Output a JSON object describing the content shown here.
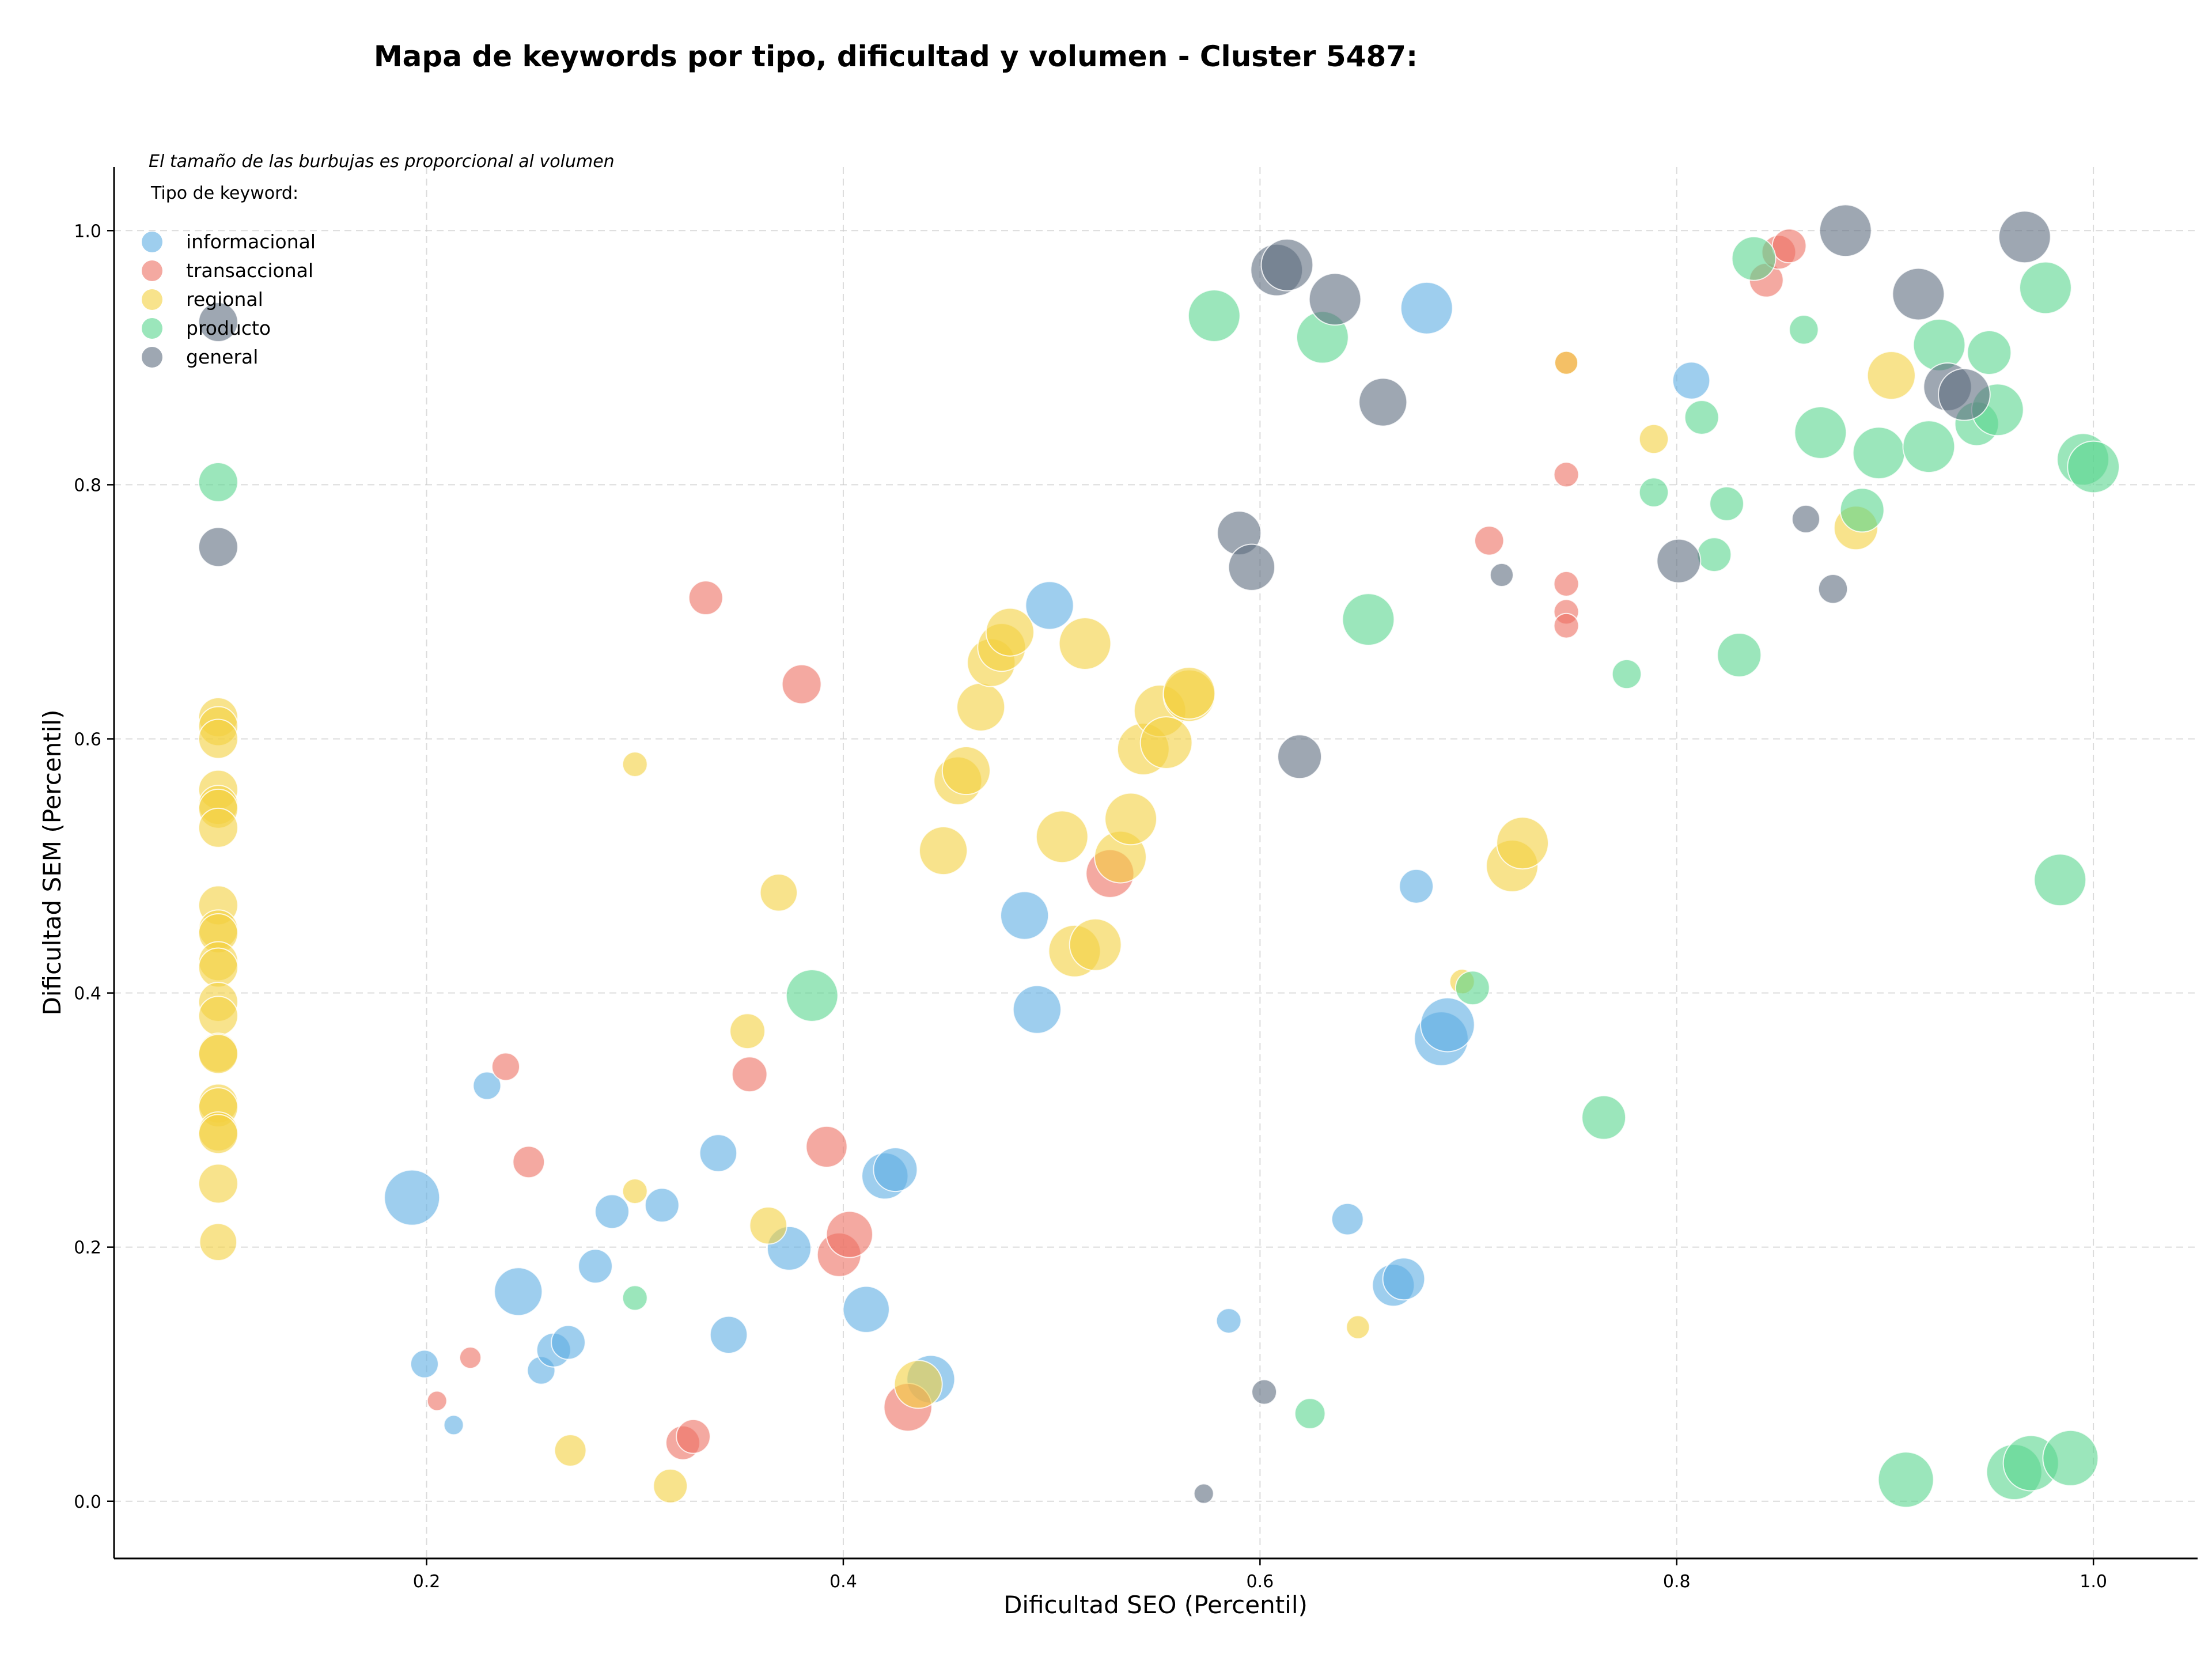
{
  "chart_data": {
    "type": "scatter",
    "title": "Mapa de keywords por tipo, dificultad y volumen - Cluster 5487:",
    "xlabel": "Dificultad SEO (Percentil)",
    "ylabel": "Dificultad SEM (Percentil)",
    "note": "El tamaño de las burbujas es proporcional al volumen",
    "legend_title": "Tipo de keyword:",
    "legend_position": "top-left",
    "xlim": [
      0.05,
      1.05
    ],
    "ylim": [
      -0.045,
      1.05
    ],
    "xticks": [
      "0.2",
      "0.4",
      "0.6",
      "0.8",
      "1.0"
    ],
    "xtick_values": [
      0.2,
      0.4,
      0.6,
      0.8,
      1.0
    ],
    "yticks": [
      "0.0",
      "0.2",
      "0.4",
      "0.6",
      "0.8",
      "1.0"
    ],
    "ytick_values": [
      0.0,
      0.2,
      0.4,
      0.6,
      0.8,
      1.0
    ],
    "grid": true,
    "series": [
      {
        "name": "informacional",
        "color": "#5DADE2",
        "points": [
          [
            0.193,
            0.239,
            4
          ],
          [
            0.199,
            0.108,
            1
          ],
          [
            0.213,
            0.06,
            0.5
          ],
          [
            0.229,
            0.327,
            1
          ],
          [
            0.244,
            0.165,
            3
          ],
          [
            0.255,
            0.103,
            1
          ],
          [
            0.261,
            0.119,
            1.5
          ],
          [
            0.268,
            0.125,
            1.5
          ],
          [
            0.281,
            0.185,
            1.5
          ],
          [
            0.289,
            0.228,
            1.5
          ],
          [
            0.313,
            0.233,
            1.5
          ],
          [
            0.34,
            0.274,
            1.8
          ],
          [
            0.345,
            0.131,
            1.8
          ],
          [
            0.374,
            0.199,
            2.5
          ],
          [
            0.411,
            0.151,
            2.8
          ],
          [
            0.42,
            0.256,
            2.8
          ],
          [
            0.425,
            0.261,
            2.5
          ],
          [
            0.442,
            0.096,
            3
          ],
          [
            0.487,
            0.461,
            3
          ],
          [
            0.493,
            0.387,
            3
          ],
          [
            0.499,
            0.705,
            3
          ],
          [
            0.585,
            0.142,
            0.8
          ],
          [
            0.642,
            0.222,
            1.3
          ],
          [
            0.664,
            0.17,
            2.3
          ],
          [
            0.669,
            0.175,
            2.3
          ],
          [
            0.675,
            0.484,
            1.5
          ],
          [
            0.68,
            0.939,
            3.5
          ],
          [
            0.687,
            0.364,
            3.8
          ],
          [
            0.69,
            0.375,
            3.8
          ],
          [
            0.807,
            0.882,
            1.8
          ]
        ]
      },
      {
        "name": "transaccional",
        "color": "#EC7063",
        "points": [
          [
            0.205,
            0.079,
            0.5
          ],
          [
            0.221,
            0.113,
            0.6
          ],
          [
            0.238,
            0.342,
            1
          ],
          [
            0.249,
            0.267,
            1.3
          ],
          [
            0.323,
            0.046,
            1.5
          ],
          [
            0.328,
            0.051,
            1.5
          ],
          [
            0.334,
            0.711,
            1.5
          ],
          [
            0.355,
            0.336,
            1.6
          ],
          [
            0.38,
            0.643,
            2
          ],
          [
            0.392,
            0.279,
            2.2
          ],
          [
            0.398,
            0.194,
            2.5
          ],
          [
            0.403,
            0.21,
            2.8
          ],
          [
            0.431,
            0.074,
            3
          ],
          [
            0.528,
            0.494,
            3
          ],
          [
            0.71,
            0.756,
            1.1
          ],
          [
            0.747,
            0.808,
            0.8
          ],
          [
            0.747,
            0.722,
            0.8
          ],
          [
            0.747,
            0.7,
            0.8
          ],
          [
            0.747,
            0.689,
            0.8
          ],
          [
            0.747,
            0.896,
            0.7
          ],
          [
            0.843,
            0.961,
            1.5
          ],
          [
            0.849,
            0.983,
            1.5
          ],
          [
            0.854,
            0.988,
            1.5
          ]
        ]
      },
      {
        "name": "regional",
        "color": "#F4D03F",
        "points": [
          [
            0.1,
            0.617,
            2
          ],
          [
            0.1,
            0.61,
            2
          ],
          [
            0.1,
            0.6,
            2
          ],
          [
            0.1,
            0.56,
            2
          ],
          [
            0.1,
            0.548,
            2
          ],
          [
            0.1,
            0.545,
            2
          ],
          [
            0.1,
            0.53,
            2
          ],
          [
            0.1,
            0.469,
            2
          ],
          [
            0.1,
            0.45,
            2
          ],
          [
            0.1,
            0.447,
            2
          ],
          [
            0.1,
            0.425,
            2
          ],
          [
            0.1,
            0.42,
            2
          ],
          [
            0.1,
            0.393,
            2
          ],
          [
            0.1,
            0.382,
            2
          ],
          [
            0.1,
            0.353,
            2
          ],
          [
            0.1,
            0.352,
            2
          ],
          [
            0.1,
            0.313,
            2
          ],
          [
            0.1,
            0.31,
            2
          ],
          [
            0.1,
            0.291,
            2
          ],
          [
            0.1,
            0.289,
            2
          ],
          [
            0.1,
            0.25,
            2
          ],
          [
            0.1,
            0.204,
            1.8
          ],
          [
            0.269,
            0.04,
            1.3
          ],
          [
            0.3,
            0.58,
            0.8
          ],
          [
            0.3,
            0.244,
            0.8
          ],
          [
            0.317,
            0.012,
            1.5
          ],
          [
            0.354,
            0.37,
            1.6
          ],
          [
            0.364,
            0.217,
            1.8
          ],
          [
            0.369,
            0.479,
            1.8
          ],
          [
            0.436,
            0.092,
            3
          ],
          [
            0.448,
            0.512,
            3
          ],
          [
            0.455,
            0.567,
            3
          ],
          [
            0.459,
            0.575,
            3
          ],
          [
            0.466,
            0.625,
            3
          ],
          [
            0.471,
            0.66,
            3
          ],
          [
            0.476,
            0.672,
            3
          ],
          [
            0.48,
            0.684,
            3
          ],
          [
            0.505,
            0.523,
            3.5
          ],
          [
            0.511,
            0.433,
            3.5
          ],
          [
            0.516,
            0.675,
            3.5
          ],
          [
            0.521,
            0.438,
            3.5
          ],
          [
            0.533,
            0.507,
            3.5
          ],
          [
            0.538,
            0.537,
            3.5
          ],
          [
            0.544,
            0.592,
            3.5
          ],
          [
            0.552,
            0.622,
            3.5
          ],
          [
            0.555,
            0.597,
            3.5
          ],
          [
            0.566,
            0.634,
            3.5
          ],
          [
            0.566,
            0.636,
            3.5
          ],
          [
            0.647,
            0.137,
            0.7
          ],
          [
            0.697,
            0.409,
            0.8
          ],
          [
            0.721,
            0.5,
            3.5
          ],
          [
            0.726,
            0.518,
            3.5
          ],
          [
            0.747,
            0.896,
            0.7
          ],
          [
            0.789,
            0.836,
            1.1
          ],
          [
            0.886,
            0.766,
            2.5
          ],
          [
            0.903,
            0.886,
            3
          ]
        ]
      },
      {
        "name": "producto",
        "color": "#58D68D",
        "points": [
          [
            0.1,
            0.802,
            2
          ],
          [
            0.3,
            0.16,
            0.8
          ],
          [
            0.385,
            0.398,
            3.5
          ],
          [
            0.578,
            0.933,
            3.5
          ],
          [
            0.624,
            0.069,
            1.2
          ],
          [
            0.63,
            0.916,
            3.5
          ],
          [
            0.652,
            0.694,
            3.5
          ],
          [
            0.702,
            0.404,
            1.5
          ],
          [
            0.765,
            0.302,
            2.5
          ],
          [
            0.776,
            0.651,
            1.1
          ],
          [
            0.789,
            0.794,
            1.1
          ],
          [
            0.812,
            0.853,
            1.5
          ],
          [
            0.818,
            0.745,
            1.5
          ],
          [
            0.824,
            0.785,
            1.5
          ],
          [
            0.83,
            0.666,
            2.5
          ],
          [
            0.837,
            0.978,
            2.5
          ],
          [
            0.861,
            0.922,
            1.1
          ],
          [
            0.869,
            0.841,
            3.5
          ],
          [
            0.889,
            0.78,
            2.5
          ],
          [
            0.897,
            0.825,
            3.5
          ],
          [
            0.91,
            0.017,
            4
          ],
          [
            0.921,
            0.83,
            3.5
          ],
          [
            0.926,
            0.91,
            3.5
          ],
          [
            0.944,
            0.848,
            2.5
          ],
          [
            0.95,
            0.904,
            2.5
          ],
          [
            0.954,
            0.859,
            3.5
          ],
          [
            0.962,
            0.023,
            4
          ],
          [
            0.97,
            0.03,
            4
          ],
          [
            0.977,
            0.955,
            3.5
          ],
          [
            0.984,
            0.489,
            3.5
          ],
          [
            0.989,
            0.034,
            4
          ],
          [
            0.995,
            0.82,
            3.5
          ],
          [
            1.0,
            0.814,
            3.5
          ]
        ]
      },
      {
        "name": "general",
        "color": "#5D6D7E",
        "points": [
          [
            0.1,
            0.928,
            2
          ],
          [
            0.1,
            0.751,
            2
          ],
          [
            0.573,
            0.006,
            0.5
          ],
          [
            0.59,
            0.762,
            2.5
          ],
          [
            0.596,
            0.735,
            2.8
          ],
          [
            0.602,
            0.086,
            0.8
          ],
          [
            0.608,
            0.969,
            3.5
          ],
          [
            0.613,
            0.973,
            3.5
          ],
          [
            0.619,
            0.586,
            2.5
          ],
          [
            0.636,
            0.946,
            3.5
          ],
          [
            0.659,
            0.865,
            3
          ],
          [
            0.716,
            0.729,
            0.7
          ],
          [
            0.801,
            0.74,
            2.5
          ],
          [
            0.862,
            0.773,
            1
          ],
          [
            0.875,
            0.718,
            1.1
          ],
          [
            0.881,
            1.0,
            3.5
          ],
          [
            0.916,
            0.95,
            3.5
          ],
          [
            0.93,
            0.877,
            3
          ],
          [
            0.938,
            0.871,
            3.5
          ],
          [
            0.967,
            0.995,
            3.5
          ]
        ]
      }
    ]
  }
}
